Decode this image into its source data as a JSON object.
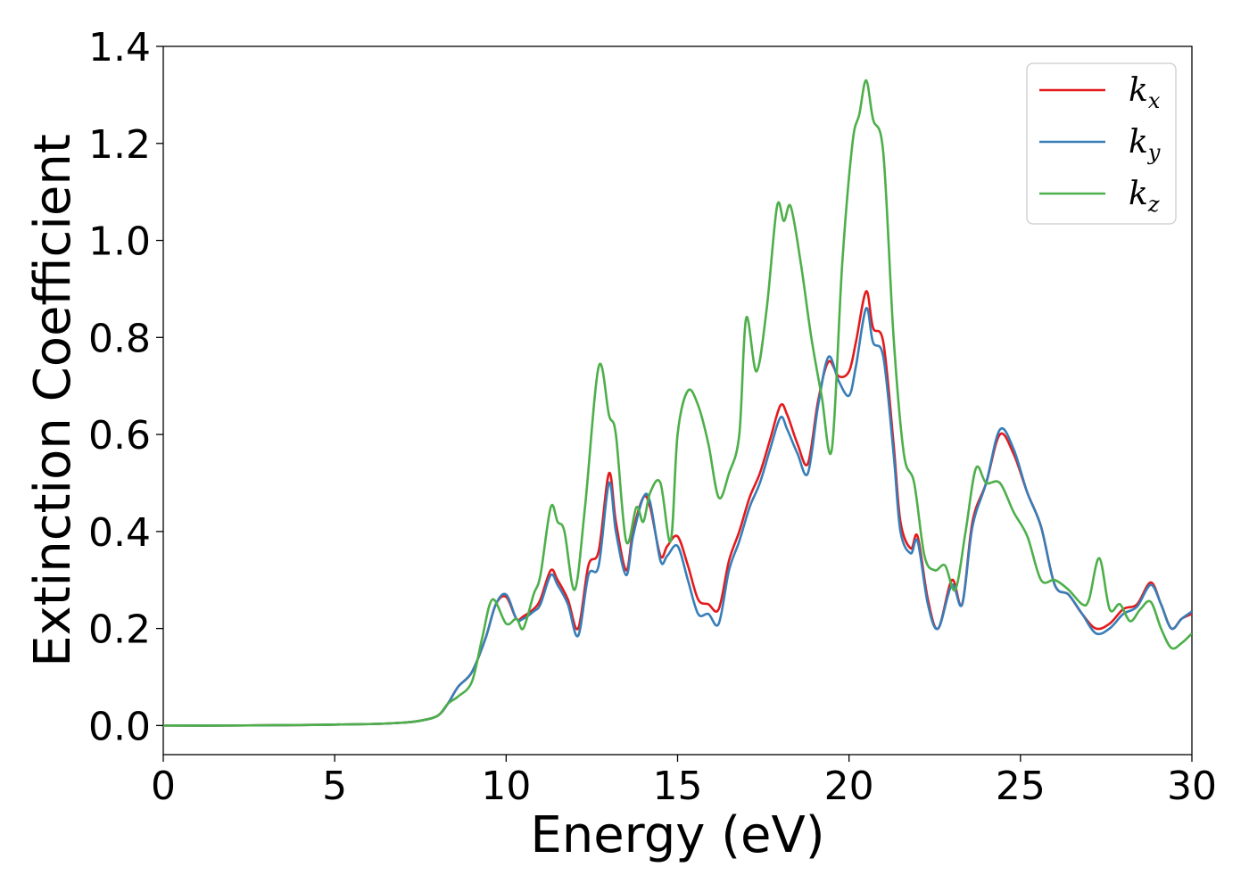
{
  "chart_data": {
    "type": "line",
    "title": "",
    "xlabel": "Energy (eV)",
    "ylabel": "Extinction Coefficient",
    "xlim": [
      0,
      30
    ],
    "ylim": [
      -0.06,
      1.4
    ],
    "xticks": [
      0,
      5,
      10,
      15,
      20,
      25,
      30
    ],
    "xtick_labels": [
      "0",
      "5",
      "10",
      "15",
      "20",
      "25",
      "30"
    ],
    "yticks": [
      0.0,
      0.2,
      0.4,
      0.6,
      0.8,
      1.0,
      1.2,
      1.4
    ],
    "ytick_labels": [
      "0.0",
      "0.2",
      "0.4",
      "0.6",
      "0.8",
      "1.0",
      "1.2",
      "1.4"
    ],
    "grid": false,
    "legend_position": "top-right",
    "series": [
      {
        "name": "k",
        "subscript": "x",
        "color": "#e41a1c",
        "x": [
          0,
          2,
          4,
          6,
          7,
          7.5,
          8,
          8.3,
          8.6,
          9.0,
          9.4,
          9.7,
          10.0,
          10.3,
          10.5,
          10.8,
          11.0,
          11.3,
          11.5,
          11.8,
          12.1,
          12.4,
          12.7,
          13.0,
          13.2,
          13.5,
          13.7,
          14.0,
          14.2,
          14.5,
          14.7,
          15.0,
          15.3,
          15.6,
          15.9,
          16.2,
          16.5,
          16.8,
          17.1,
          17.4,
          17.7,
          18.0,
          18.2,
          18.5,
          18.8,
          19.1,
          19.4,
          19.7,
          20.0,
          20.2,
          20.5,
          20.7,
          21.0,
          21.3,
          21.5,
          21.8,
          22.0,
          22.3,
          22.6,
          23.0,
          23.3,
          23.6,
          24.0,
          24.4,
          24.8,
          25.2,
          25.6,
          26.0,
          26.4,
          26.8,
          27.2,
          27.6,
          28.0,
          28.4,
          28.8,
          29.1,
          29.4,
          29.7,
          30.0
        ],
        "y": [
          0.0,
          0.0,
          0.001,
          0.003,
          0.006,
          0.01,
          0.02,
          0.045,
          0.08,
          0.11,
          0.18,
          0.25,
          0.265,
          0.22,
          0.225,
          0.24,
          0.26,
          0.32,
          0.3,
          0.26,
          0.2,
          0.33,
          0.36,
          0.52,
          0.42,
          0.32,
          0.4,
          0.47,
          0.45,
          0.35,
          0.37,
          0.39,
          0.33,
          0.26,
          0.25,
          0.24,
          0.34,
          0.4,
          0.47,
          0.52,
          0.59,
          0.66,
          0.64,
          0.58,
          0.54,
          0.67,
          0.75,
          0.72,
          0.73,
          0.79,
          0.895,
          0.82,
          0.79,
          0.58,
          0.42,
          0.365,
          0.39,
          0.26,
          0.2,
          0.3,
          0.25,
          0.42,
          0.5,
          0.6,
          0.56,
          0.48,
          0.41,
          0.29,
          0.27,
          0.23,
          0.2,
          0.21,
          0.24,
          0.25,
          0.295,
          0.25,
          0.2,
          0.22,
          0.23
        ]
      },
      {
        "name": "k",
        "subscript": "y",
        "color": "#377eb8",
        "x": [
          0,
          2,
          4,
          6,
          7,
          7.5,
          8,
          8.3,
          8.6,
          9.0,
          9.4,
          9.7,
          10.0,
          10.3,
          10.5,
          10.8,
          11.0,
          11.3,
          11.5,
          11.8,
          12.1,
          12.4,
          12.7,
          13.0,
          13.2,
          13.5,
          13.7,
          14.0,
          14.2,
          14.5,
          14.7,
          15.0,
          15.3,
          15.6,
          15.9,
          16.2,
          16.5,
          16.8,
          17.1,
          17.4,
          17.7,
          18.0,
          18.2,
          18.5,
          18.8,
          19.1,
          19.4,
          19.7,
          20.0,
          20.2,
          20.5,
          20.7,
          21.0,
          21.3,
          21.5,
          21.8,
          22.0,
          22.3,
          22.6,
          23.0,
          23.3,
          23.6,
          24.0,
          24.4,
          24.8,
          25.2,
          25.6,
          26.0,
          26.4,
          26.8,
          27.2,
          27.6,
          28.0,
          28.4,
          28.8,
          29.1,
          29.4,
          29.7,
          30.0
        ],
        "y": [
          0.0,
          0.0,
          0.001,
          0.003,
          0.006,
          0.01,
          0.02,
          0.045,
          0.08,
          0.11,
          0.18,
          0.25,
          0.27,
          0.22,
          0.22,
          0.235,
          0.25,
          0.31,
          0.29,
          0.25,
          0.185,
          0.31,
          0.33,
          0.5,
          0.4,
          0.31,
          0.39,
          0.47,
          0.46,
          0.34,
          0.35,
          0.37,
          0.3,
          0.23,
          0.23,
          0.21,
          0.32,
          0.38,
          0.45,
          0.5,
          0.57,
          0.635,
          0.61,
          0.56,
          0.52,
          0.66,
          0.76,
          0.71,
          0.68,
          0.74,
          0.86,
          0.79,
          0.76,
          0.56,
          0.4,
          0.355,
          0.38,
          0.25,
          0.2,
          0.29,
          0.25,
          0.41,
          0.5,
          0.61,
          0.57,
          0.48,
          0.41,
          0.29,
          0.27,
          0.23,
          0.19,
          0.2,
          0.23,
          0.245,
          0.29,
          0.25,
          0.2,
          0.22,
          0.235
        ]
      },
      {
        "name": "k",
        "subscript": "z",
        "color": "#4daf4a",
        "x": [
          0,
          2,
          4,
          6,
          7,
          7.5,
          8,
          8.3,
          8.6,
          9.0,
          9.3,
          9.6,
          10.0,
          10.3,
          10.5,
          10.8,
          11.0,
          11.3,
          11.5,
          11.7,
          12.0,
          12.3,
          12.7,
          13.0,
          13.2,
          13.5,
          13.8,
          14.0,
          14.2,
          14.5,
          14.8,
          15.0,
          15.3,
          15.6,
          15.9,
          16.2,
          16.5,
          16.8,
          17.0,
          17.3,
          17.6,
          17.9,
          18.1,
          18.3,
          18.6,
          18.9,
          19.2,
          19.5,
          19.8,
          20.1,
          20.3,
          20.5,
          20.7,
          21.0,
          21.3,
          21.6,
          21.9,
          22.2,
          22.5,
          22.8,
          23.1,
          23.4,
          23.7,
          24.0,
          24.4,
          24.8,
          25.2,
          25.6,
          26.0,
          26.4,
          26.8,
          27.0,
          27.3,
          27.6,
          27.9,
          28.2,
          28.5,
          28.8,
          29.1,
          29.4,
          29.7,
          30.0
        ],
        "y": [
          0.0,
          0.0,
          0.001,
          0.003,
          0.006,
          0.01,
          0.02,
          0.045,
          0.06,
          0.09,
          0.18,
          0.26,
          0.21,
          0.22,
          0.2,
          0.27,
          0.31,
          0.45,
          0.42,
          0.4,
          0.28,
          0.45,
          0.74,
          0.64,
          0.6,
          0.38,
          0.45,
          0.42,
          0.48,
          0.5,
          0.38,
          0.6,
          0.69,
          0.66,
          0.58,
          0.47,
          0.52,
          0.6,
          0.84,
          0.73,
          0.86,
          1.07,
          1.04,
          1.07,
          0.95,
          0.8,
          0.68,
          0.57,
          0.95,
          1.2,
          1.26,
          1.33,
          1.25,
          1.18,
          0.8,
          0.56,
          0.5,
          0.35,
          0.32,
          0.33,
          0.28,
          0.4,
          0.53,
          0.5,
          0.5,
          0.44,
          0.39,
          0.3,
          0.3,
          0.28,
          0.25,
          0.26,
          0.345,
          0.24,
          0.25,
          0.215,
          0.24,
          0.255,
          0.2,
          0.16,
          0.17,
          0.19
        ]
      }
    ]
  }
}
